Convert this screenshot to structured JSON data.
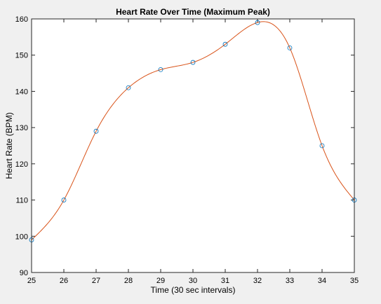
{
  "chart_data": {
    "type": "line",
    "title": "Heart Rate Over Time (Maximum Peak)",
    "xlabel": "Time (30 sec intervals)",
    "ylabel": "Heart Rate (BPM)",
    "xlim": [
      25,
      35
    ],
    "ylim": [
      90,
      160
    ],
    "xticks": [
      25,
      26,
      27,
      28,
      29,
      30,
      31,
      32,
      33,
      34,
      35
    ],
    "yticks": [
      90,
      100,
      110,
      120,
      130,
      140,
      150,
      160
    ],
    "grid": false,
    "series": [
      {
        "marker": "circle",
        "line": "none",
        "x": [
          25,
          26,
          27,
          28,
          29,
          30,
          31,
          32,
          33,
          34,
          35
        ],
        "y": [
          99,
          110,
          129,
          141,
          146,
          148,
          153,
          159,
          152,
          125,
          110
        ],
        "color": "#0072BD"
      },
      {
        "marker": "none",
        "line": "smooth-spline",
        "x": [
          25,
          26,
          27,
          28,
          29,
          30,
          31,
          32,
          33,
          34,
          35
        ],
        "y": [
          99,
          110,
          129,
          141,
          146,
          148,
          153,
          159,
          152,
          125,
          110
        ],
        "color": "#D95319"
      }
    ]
  },
  "colors": {
    "figure_background": "#f0f0f0",
    "axes_background": "#ffffff",
    "axes_border": "#262626"
  }
}
